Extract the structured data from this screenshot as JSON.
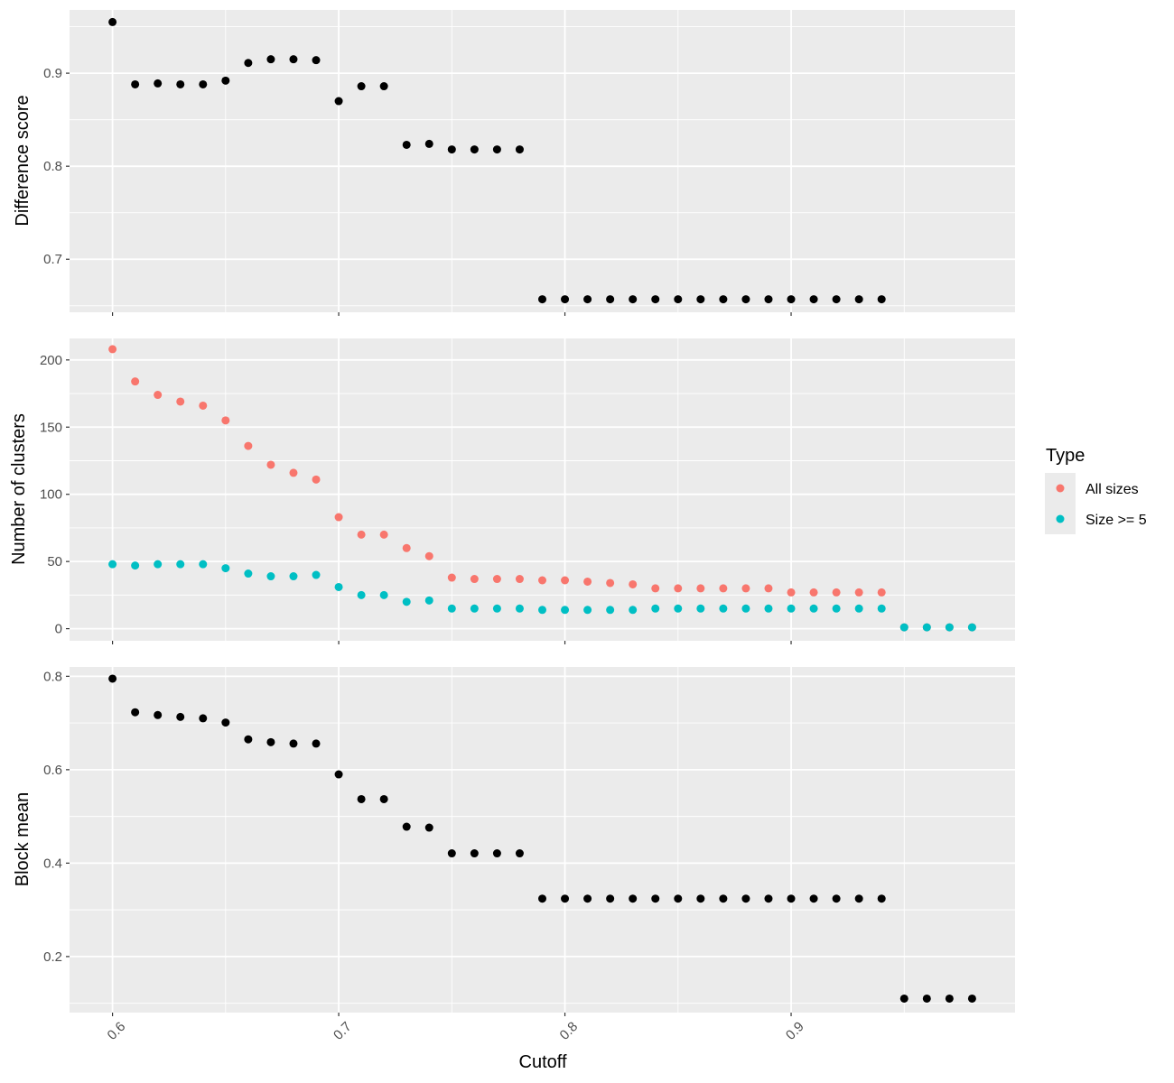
{
  "chart_data": [
    {
      "type": "scatter",
      "ylabel": "Difference score",
      "xlim": [
        0.581,
        0.999
      ],
      "ylim": [
        0.643,
        0.968
      ],
      "x_ticks": [
        0.6,
        0.7,
        0.8,
        0.9
      ],
      "y_ticks": [
        0.7,
        0.8,
        0.9
      ],
      "y_tick_labels": [
        "0.7",
        "0.8",
        "0.9"
      ],
      "series": [
        {
          "color": "#000000",
          "x": [
            0.6,
            0.61,
            0.62,
            0.63,
            0.64,
            0.65,
            0.66,
            0.67,
            0.68,
            0.69,
            0.7,
            0.71,
            0.72,
            0.73,
            0.74,
            0.75,
            0.76,
            0.77,
            0.78,
            0.79,
            0.8,
            0.81,
            0.82,
            0.83,
            0.84,
            0.85,
            0.86,
            0.87,
            0.88,
            0.89,
            0.9,
            0.91,
            0.92,
            0.93,
            0.94
          ],
          "y": [
            0.955,
            0.888,
            0.889,
            0.888,
            0.888,
            0.892,
            0.911,
            0.915,
            0.915,
            0.914,
            0.87,
            0.886,
            0.886,
            0.823,
            0.824,
            0.818,
            0.818,
            0.818,
            0.818,
            0.657,
            0.657,
            0.657,
            0.657,
            0.657,
            0.657,
            0.657,
            0.657,
            0.657,
            0.657,
            0.657,
            0.657,
            0.657,
            0.657,
            0.657,
            0.657
          ]
        }
      ]
    },
    {
      "type": "scatter",
      "ylabel": "Number of clusters",
      "xlim": [
        0.581,
        0.999
      ],
      "ylim": [
        -9,
        216
      ],
      "x_ticks": [
        0.6,
        0.7,
        0.8,
        0.9
      ],
      "y_ticks": [
        0,
        50,
        100,
        150,
        200
      ],
      "y_tick_labels": [
        "0",
        "50",
        "100",
        "150",
        "200"
      ],
      "legend": {
        "title": "Type",
        "position": "right"
      },
      "series": [
        {
          "name": "All sizes",
          "color": "#F8766D",
          "x": [
            0.6,
            0.61,
            0.62,
            0.63,
            0.64,
            0.65,
            0.66,
            0.67,
            0.68,
            0.69,
            0.7,
            0.71,
            0.72,
            0.73,
            0.74,
            0.75,
            0.76,
            0.77,
            0.78,
            0.79,
            0.8,
            0.81,
            0.82,
            0.83,
            0.84,
            0.85,
            0.86,
            0.87,
            0.88,
            0.89,
            0.9,
            0.91,
            0.92,
            0.93,
            0.94,
            0.95,
            0.96,
            0.97,
            0.98
          ],
          "y": [
            208,
            184,
            174,
            169,
            166,
            155,
            136,
            122,
            116,
            111,
            83,
            70,
            70,
            60,
            54,
            38,
            37,
            37,
            37,
            36,
            36,
            35,
            34,
            33,
            30,
            30,
            30,
            30,
            30,
            30,
            27,
            27,
            27,
            27,
            27,
            1,
            1,
            1,
            1
          ]
        },
        {
          "name": "Size >= 5",
          "color": "#00BFC4",
          "x": [
            0.6,
            0.61,
            0.62,
            0.63,
            0.64,
            0.65,
            0.66,
            0.67,
            0.68,
            0.69,
            0.7,
            0.71,
            0.72,
            0.73,
            0.74,
            0.75,
            0.76,
            0.77,
            0.78,
            0.79,
            0.8,
            0.81,
            0.82,
            0.83,
            0.84,
            0.85,
            0.86,
            0.87,
            0.88,
            0.89,
            0.9,
            0.91,
            0.92,
            0.93,
            0.94,
            0.95,
            0.96,
            0.97,
            0.98
          ],
          "y": [
            48,
            47,
            48,
            48,
            48,
            45,
            41,
            39,
            39,
            40,
            31,
            25,
            25,
            20,
            21,
            15,
            15,
            15,
            15,
            14,
            14,
            14,
            14,
            14,
            15,
            15,
            15,
            15,
            15,
            15,
            15,
            15,
            15,
            15,
            15,
            1,
            1,
            1,
            1
          ]
        }
      ]
    },
    {
      "type": "scatter",
      "ylabel": "Block mean",
      "xlabel": "Cutoff",
      "xlim": [
        0.581,
        0.999
      ],
      "ylim": [
        0.08,
        0.82
      ],
      "x_ticks": [
        0.6,
        0.7,
        0.8,
        0.9
      ],
      "x_tick_labels": [
        "0.6",
        "0.7",
        "0.8",
        "0.9"
      ],
      "y_ticks": [
        0.2,
        0.4,
        0.6,
        0.8
      ],
      "y_tick_labels": [
        "0.2",
        "0.4",
        "0.6",
        "0.8"
      ],
      "series": [
        {
          "color": "#000000",
          "x": [
            0.6,
            0.61,
            0.62,
            0.63,
            0.64,
            0.65,
            0.66,
            0.67,
            0.68,
            0.69,
            0.7,
            0.71,
            0.72,
            0.73,
            0.74,
            0.75,
            0.76,
            0.77,
            0.78,
            0.79,
            0.8,
            0.81,
            0.82,
            0.83,
            0.84,
            0.85,
            0.86,
            0.87,
            0.88,
            0.89,
            0.9,
            0.91,
            0.92,
            0.93,
            0.94,
            0.95,
            0.96,
            0.97,
            0.98
          ],
          "y": [
            0.795,
            0.723,
            0.717,
            0.713,
            0.71,
            0.701,
            0.665,
            0.659,
            0.656,
            0.656,
            0.59,
            0.537,
            0.537,
            0.478,
            0.476,
            0.421,
            0.421,
            0.421,
            0.421,
            0.324,
            0.324,
            0.324,
            0.324,
            0.324,
            0.324,
            0.324,
            0.324,
            0.324,
            0.324,
            0.324,
            0.324,
            0.324,
            0.324,
            0.324,
            0.324,
            0.11,
            0.11,
            0.11,
            0.11
          ]
        }
      ]
    }
  ]
}
